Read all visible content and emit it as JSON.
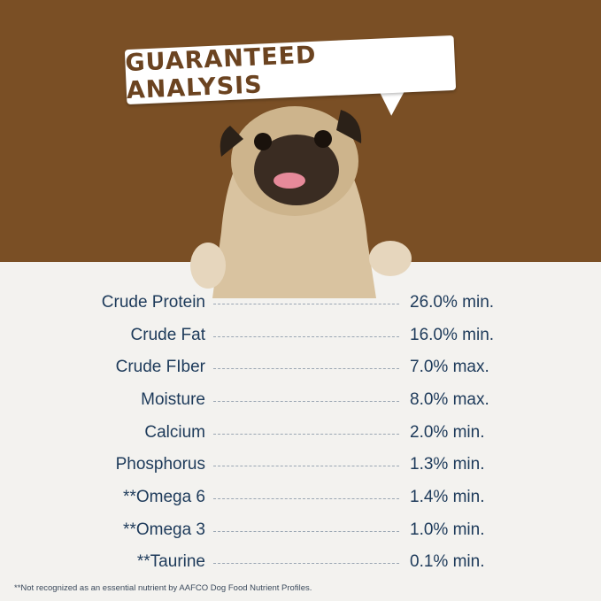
{
  "header": {
    "title": "GUARANTEED ANALYSIS"
  },
  "colors": {
    "background_top": "#7a4f25",
    "paper": "#f3f2ef",
    "text": "#1d3a5a",
    "title": "#6b4320"
  },
  "image": {
    "subject": "pug-dog"
  },
  "analysis": [
    {
      "label": "Crude Protein",
      "value": "26.0% min."
    },
    {
      "label": "Crude Fat",
      "value": "16.0% min."
    },
    {
      "label": "Crude FIber",
      "value": "7.0% max."
    },
    {
      "label": "Moisture",
      "value": "8.0% max."
    },
    {
      "label": "Calcium",
      "value": "2.0% min."
    },
    {
      "label": "Phosphorus",
      "value": "1.3% min."
    },
    {
      "label": "**Omega 6",
      "value": "1.4% min."
    },
    {
      "label": "**Omega 3",
      "value": "1.0% min."
    },
    {
      "label": "**Taurine",
      "value": "0.1% min."
    }
  ],
  "footnote": "**Not recognized as an essential nutrient by AAFCO Dog Food Nutrient Profiles."
}
